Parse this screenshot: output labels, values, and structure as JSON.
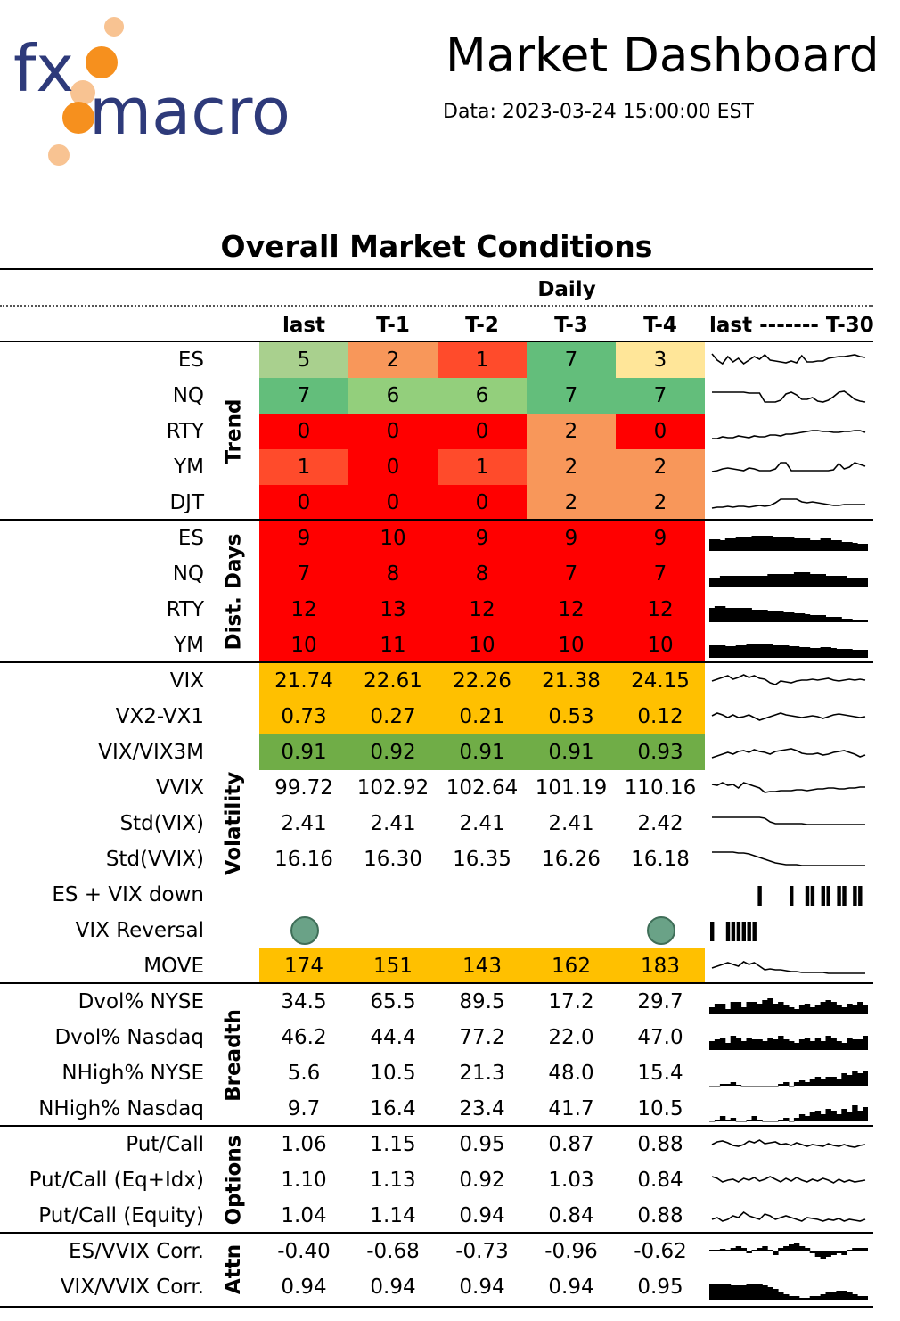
{
  "header": {
    "title": "Market Dashboard",
    "subtitle": "Data: 2023-03-24 15:00:00 EST",
    "logo_text_top": "fx",
    "logo_text_bottom": "macro",
    "logo_colors": {
      "text": "#2e3a7a",
      "dots": "#f6901e",
      "dots_light": "#f8c392"
    }
  },
  "section": {
    "title": "Overall Market Conditions",
    "period_label": "Daily",
    "columns": [
      "last",
      "T-1",
      "T-2",
      "T-3",
      "T-4"
    ],
    "spark_header": "last ------- T-30"
  },
  "colors": {
    "dark_green": "#63be7b",
    "green": "#70ad47",
    "light_green": "#a9d08e",
    "light_green2": "#93cf7c",
    "yellow": "#ffe699",
    "light_orange": "#f4b183",
    "orange": "#f8975a",
    "red_orange": "#ff5a3c",
    "red": "#ff0000",
    "amber": "#ffc000",
    "sage": "#6aa287"
  },
  "groups": [
    {
      "name": "Trend",
      "rows": [
        {
          "label": "ES",
          "values": [
            "5",
            "2",
            "1",
            "7",
            "3"
          ],
          "colors": [
            "#a9d08e",
            "#f8975a",
            "#ff4b2b",
            "#63be7b",
            "#ffe699"
          ]
        },
        {
          "label": "NQ",
          "values": [
            "7",
            "6",
            "6",
            "7",
            "7"
          ],
          "colors": [
            "#63be7b",
            "#93cf7c",
            "#93cf7c",
            "#63be7b",
            "#63be7b"
          ]
        },
        {
          "label": "RTY",
          "values": [
            "0",
            "0",
            "0",
            "2",
            "0"
          ],
          "colors": [
            "#ff0000",
            "#ff0000",
            "#ff0000",
            "#f8975a",
            "#ff0000"
          ]
        },
        {
          "label": "YM",
          "values": [
            "1",
            "0",
            "1",
            "2",
            "2"
          ],
          "colors": [
            "#ff4b2b",
            "#ff0000",
            "#ff4b2b",
            "#f8975a",
            "#f8975a"
          ]
        },
        {
          "label": "DJT",
          "values": [
            "0",
            "0",
            "0",
            "2",
            "2"
          ],
          "colors": [
            "#ff0000",
            "#ff0000",
            "#ff0000",
            "#f8975a",
            "#f8975a"
          ]
        }
      ]
    },
    {
      "name": "Dist. Days",
      "rows": [
        {
          "label": "ES",
          "values": [
            "9",
            "10",
            "9",
            "9",
            "9"
          ],
          "colors": [
            "#ff0000",
            "#ff0000",
            "#ff0000",
            "#ff0000",
            "#ff0000"
          ]
        },
        {
          "label": "NQ",
          "values": [
            "7",
            "8",
            "8",
            "7",
            "7"
          ],
          "colors": [
            "#ff0000",
            "#ff0000",
            "#ff0000",
            "#ff0000",
            "#ff0000"
          ]
        },
        {
          "label": "RTY",
          "values": [
            "12",
            "13",
            "12",
            "12",
            "12"
          ],
          "colors": [
            "#ff0000",
            "#ff0000",
            "#ff0000",
            "#ff0000",
            "#ff0000"
          ]
        },
        {
          "label": "YM",
          "values": [
            "10",
            "11",
            "10",
            "10",
            "10"
          ],
          "colors": [
            "#ff0000",
            "#ff0000",
            "#ff0000",
            "#ff0000",
            "#ff0000"
          ]
        }
      ]
    },
    {
      "name": "Volatility",
      "rows": [
        {
          "label": "VIX",
          "values": [
            "21.74",
            "22.61",
            "22.26",
            "21.38",
            "24.15"
          ],
          "colors": [
            "#ffc000",
            "#ffc000",
            "#ffc000",
            "#ffc000",
            "#ffc000"
          ]
        },
        {
          "label": "VX2-VX1",
          "values": [
            "0.73",
            "0.27",
            "0.21",
            "0.53",
            "0.12"
          ],
          "colors": [
            "#ffc000",
            "#ffc000",
            "#ffc000",
            "#ffc000",
            "#ffc000"
          ]
        },
        {
          "label": "VIX/VIX3M",
          "values": [
            "0.91",
            "0.92",
            "0.91",
            "0.91",
            "0.93"
          ],
          "colors": [
            "#70ad47",
            "#70ad47",
            "#70ad47",
            "#70ad47",
            "#70ad47"
          ]
        },
        {
          "label": "VVIX",
          "values": [
            "99.72",
            "102.92",
            "102.64",
            "101.19",
            "110.16"
          ],
          "colors": [
            "",
            "",
            "",
            "",
            ""
          ]
        },
        {
          "label": "Std(VIX)",
          "values": [
            "2.41",
            "2.41",
            "2.41",
            "2.41",
            "2.42"
          ],
          "colors": [
            "",
            "",
            "",
            "",
            ""
          ]
        },
        {
          "label": "Std(VVIX)",
          "values": [
            "16.16",
            "16.30",
            "16.35",
            "16.26",
            "16.18"
          ],
          "colors": [
            "",
            "",
            "",
            "",
            ""
          ]
        },
        {
          "label": "ES + VIX down",
          "values": [
            "",
            "",
            "",
            "",
            ""
          ],
          "colors": [
            "",
            "",
            "",
            "",
            ""
          ]
        },
        {
          "label": "VIX Reversal",
          "values": [
            "",
            "",
            "",
            "",
            ""
          ],
          "colors": [
            "",
            "",
            "",
            "",
            ""
          ],
          "dots": [
            true,
            false,
            false,
            false,
            true
          ]
        },
        {
          "label": "MOVE",
          "values": [
            "174",
            "151",
            "143",
            "162",
            "183"
          ],
          "colors": [
            "#ffc000",
            "#ffc000",
            "#ffc000",
            "#ffc000",
            "#ffc000"
          ]
        }
      ]
    },
    {
      "name": "Breadth",
      "rows": [
        {
          "label": "Dvol% NYSE",
          "values": [
            "34.5",
            "65.5",
            "89.5",
            "17.2",
            "29.7"
          ],
          "colors": [
            "",
            "",
            "",
            "",
            ""
          ]
        },
        {
          "label": "Dvol% Nasdaq",
          "values": [
            "46.2",
            "44.4",
            "77.2",
            "22.0",
            "47.0"
          ],
          "colors": [
            "",
            "",
            "",
            "",
            ""
          ]
        },
        {
          "label": "NHigh% NYSE",
          "values": [
            "5.6",
            "10.5",
            "21.3",
            "48.0",
            "15.4"
          ],
          "colors": [
            "",
            "",
            "",
            "",
            ""
          ]
        },
        {
          "label": "NHigh% Nasdaq",
          "values": [
            "9.7",
            "16.4",
            "23.4",
            "41.7",
            "10.5"
          ],
          "colors": [
            "",
            "",
            "",
            "",
            ""
          ]
        }
      ]
    },
    {
      "name": "Options",
      "rows": [
        {
          "label": "Put/Call",
          "values": [
            "1.06",
            "1.15",
            "0.95",
            "0.87",
            "0.88"
          ],
          "colors": [
            "",
            "",
            "",
            "",
            ""
          ]
        },
        {
          "label": "Put/Call (Eq+Idx)",
          "values": [
            "1.10",
            "1.13",
            "0.92",
            "1.03",
            "0.84"
          ],
          "colors": [
            "",
            "",
            "",
            "",
            ""
          ]
        },
        {
          "label": "Put/Call (Equity)",
          "values": [
            "1.04",
            "1.14",
            "0.94",
            "0.84",
            "0.88"
          ],
          "colors": [
            "",
            "",
            "",
            "",
            ""
          ]
        }
      ]
    },
    {
      "name": "Attn",
      "rows": [
        {
          "label": "ES/VVIX Corr.",
          "values": [
            "-0.40",
            "-0.68",
            "-0.73",
            "-0.96",
            "-0.62"
          ],
          "colors": [
            "",
            "",
            "",
            "",
            ""
          ]
        },
        {
          "label": "VIX/VVIX Corr.",
          "values": [
            "0.94",
            "0.94",
            "0.94",
            "0.94",
            "0.95"
          ],
          "colors": [
            "",
            "",
            "",
            "",
            ""
          ]
        }
      ]
    }
  ]
}
